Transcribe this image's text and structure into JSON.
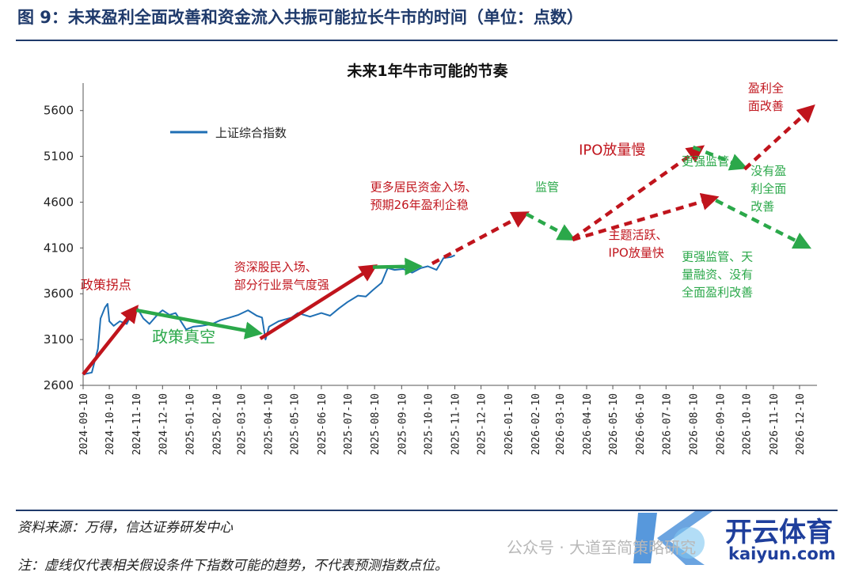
{
  "figure_title": "图 9：未来盈利全面改善和资金流入共振可能拉长牛市的时间（单位：点数）",
  "source_text": "资料来源：万得，信达证券研发中心",
  "footnote_text": "注：虚线仅代表相关假设条件下指数可能的趋势，不代表预测指数点位。",
  "watermark": {
    "wechat_text": "公众号 · 大道至简策略研究",
    "brand_text": "开云体育",
    "url_text": "kaiyun.com"
  },
  "colors": {
    "series": "#1f6fb4",
    "red": "#c0141c",
    "green": "#2ba84a",
    "title_blue": "#1f3a6b"
  },
  "chart_data": {
    "type": "line",
    "title": "未来1年牛市可能的节奏",
    "xlabel": "",
    "ylabel": "",
    "ylim": [
      2600,
      5900
    ],
    "yticks": [
      2600,
      3100,
      3600,
      4100,
      4600,
      5100,
      5600
    ],
    "xtick_labels": [
      "2024-09-10",
      "2024-10-10",
      "2024-11-10",
      "2024-12-10",
      "2025-01-10",
      "2025-02-10",
      "2025-03-10",
      "2025-04-10",
      "2025-05-10",
      "2025-06-10",
      "2025-07-10",
      "2025-08-10",
      "2025-09-10",
      "2025-10-10",
      "2025-11-10",
      "2025-12-10",
      "2026-01-10",
      "2026-02-10",
      "2026-03-10",
      "2026-04-10",
      "2026-05-10",
      "2026-06-10",
      "2026-07-10",
      "2026-08-10",
      "2026-09-10",
      "2026-10-10",
      "2026-11-10",
      "2026-12-10"
    ],
    "grid": false,
    "legend_position": "top-left",
    "series": [
      {
        "name": "上证综合指数",
        "points": [
          [
            "2024-09-10",
            2720
          ],
          [
            "2024-09-20",
            2740
          ],
          [
            "2024-09-27",
            3000
          ],
          [
            "2024-09-30",
            3330
          ],
          [
            "2024-10-05",
            3450
          ],
          [
            "2024-10-08",
            3490
          ],
          [
            "2024-10-10",
            3300
          ],
          [
            "2024-10-15",
            3250
          ],
          [
            "2024-10-22",
            3300
          ],
          [
            "2024-10-30",
            3270
          ],
          [
            "2024-11-05",
            3390
          ],
          [
            "2024-11-10",
            3460
          ],
          [
            "2024-11-18",
            3330
          ],
          [
            "2024-11-25",
            3270
          ],
          [
            "2024-12-05",
            3380
          ],
          [
            "2024-12-10",
            3420
          ],
          [
            "2024-12-18",
            3370
          ],
          [
            "2024-12-25",
            3390
          ],
          [
            "2025-01-06",
            3210
          ],
          [
            "2025-01-14",
            3240
          ],
          [
            "2025-01-24",
            3250
          ],
          [
            "2025-02-05",
            3270
          ],
          [
            "2025-02-14",
            3310
          ],
          [
            "2025-02-25",
            3340
          ],
          [
            "2025-03-07",
            3370
          ],
          [
            "2025-03-18",
            3420
          ],
          [
            "2025-03-28",
            3360
          ],
          [
            "2025-04-03",
            3340
          ],
          [
            "2025-04-07",
            3100
          ],
          [
            "2025-04-11",
            3240
          ],
          [
            "2025-04-22",
            3300
          ],
          [
            "2025-05-07",
            3340
          ],
          [
            "2025-05-14",
            3390
          ],
          [
            "2025-05-28",
            3350
          ],
          [
            "2025-06-10",
            3390
          ],
          [
            "2025-06-20",
            3360
          ],
          [
            "2025-06-30",
            3440
          ],
          [
            "2025-07-10",
            3510
          ],
          [
            "2025-07-22",
            3580
          ],
          [
            "2025-07-31",
            3570
          ],
          [
            "2025-08-08",
            3640
          ],
          [
            "2025-08-18",
            3720
          ],
          [
            "2025-08-25",
            3880
          ],
          [
            "2025-09-02",
            3860
          ],
          [
            "2025-09-12",
            3870
          ],
          [
            "2025-09-22",
            3830
          ],
          [
            "2025-10-02",
            3880
          ],
          [
            "2025-10-10",
            3900
          ],
          [
            "2025-10-20",
            3860
          ],
          [
            "2025-10-28",
            3990
          ],
          [
            "2025-11-05",
            4000
          ],
          [
            "2025-11-10",
            4020
          ]
        ]
      }
    ],
    "arrows": [
      {
        "color": "red",
        "style": "solid",
        "from": [
          "2024-09-10",
          2720
        ],
        "to": [
          "2024-11-10",
          3450
        ]
      },
      {
        "color": "green",
        "style": "solid",
        "from": [
          "2024-11-10",
          3420
        ],
        "to": [
          "2025-03-31",
          3170
        ]
      },
      {
        "color": "red",
        "style": "solid",
        "from": [
          "2025-04-01",
          3110
        ],
        "to": [
          "2025-08-10",
          3900
        ]
      },
      {
        "color": "green",
        "style": "solid",
        "from": [
          "2025-08-08",
          3890
        ],
        "to": [
          "2025-09-30",
          3900
        ]
      },
      {
        "color": "red",
        "style": "dashed",
        "from": [
          "2025-10-15",
          3930
        ],
        "to": [
          "2026-01-31",
          4480
        ]
      },
      {
        "color": "green",
        "style": "dashed",
        "from": [
          "2026-01-31",
          4470
        ],
        "to": [
          "2026-03-25",
          4200
        ]
      },
      {
        "color": "red",
        "style": "dashed",
        "from": [
          "2026-03-25",
          4200
        ],
        "to": [
          "2026-08-20",
          5200
        ]
      },
      {
        "color": "green",
        "style": "dashed",
        "from": [
          "2026-08-10",
          5200
        ],
        "to": [
          "2026-10-08",
          4980
        ]
      },
      {
        "color": "red",
        "style": "dashed",
        "from": [
          "2026-10-08",
          4960
        ],
        "to": [
          "2026-12-25",
          5640
        ]
      },
      {
        "color": "red",
        "style": "dashed",
        "from": [
          "2026-03-25",
          4190
        ],
        "to": [
          "2026-09-05",
          4650
        ]
      },
      {
        "color": "green",
        "style": "dashed",
        "from": [
          "2026-09-05",
          4620
        ],
        "to": [
          "2026-12-20",
          4110
        ]
      }
    ],
    "annotations": [
      {
        "color": "red",
        "lines": [
          "政策拐点"
        ],
        "at": [
          "2024-09-07",
          3650
        ],
        "size": 16
      },
      {
        "color": "green",
        "lines": [
          "政策真空"
        ],
        "at": [
          "2024-11-28",
          3070
        ],
        "size": 20
      },
      {
        "color": "red",
        "lines": [
          "资深股民入场、",
          "部分行业景气度强"
        ],
        "at": [
          "2025-03-02",
          3850
        ],
        "size": 15
      },
      {
        "color": "red",
        "lines": [
          "更多居民资金入场、",
          "预期26年盈利企稳"
        ],
        "at": [
          "2025-08-05",
          4720
        ],
        "size": 15
      },
      {
        "color": "green",
        "lines": [
          "监管"
        ],
        "at": [
          "2026-02-10",
          4720
        ],
        "size": 15
      },
      {
        "color": "red",
        "lines": [
          "IPO放量慢"
        ],
        "at": [
          "2026-04-01",
          5120
        ],
        "size": 18
      },
      {
        "color": "green",
        "lines": [
          "更强监管"
        ],
        "at": [
          "2026-07-28",
          5000
        ],
        "size": 15
      },
      {
        "color": "red",
        "lines": [
          "盈利全",
          "面改善"
        ],
        "at": [
          "2026-10-12",
          5800
        ],
        "size": 15
      },
      {
        "color": "green",
        "lines": [
          "没有盈",
          "利全面",
          "改善"
        ],
        "at": [
          "2026-10-15",
          4900
        ],
        "size": 15
      },
      {
        "color": "red",
        "lines": [
          "主题活跃、",
          "IPO放量快"
        ],
        "at": [
          "2026-05-05",
          4200
        ],
        "size": 15
      },
      {
        "color": "green",
        "lines": [
          "更强监管、天",
          "量融资、没有",
          "全面盈利改善"
        ],
        "at": [
          "2026-07-28",
          3960
        ],
        "size": 15
      }
    ]
  }
}
